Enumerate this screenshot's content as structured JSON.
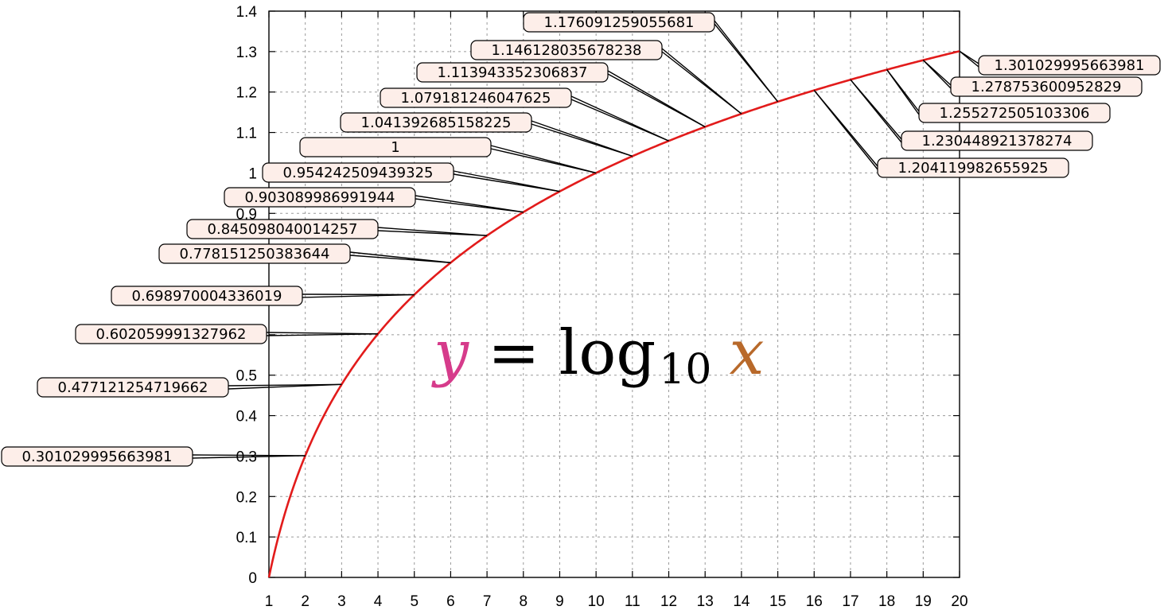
{
  "chart_data": {
    "type": "line",
    "xlim": [
      1,
      20
    ],
    "ylim": [
      0,
      1.4
    ],
    "grid": true,
    "x_ticks": [
      "1",
      "2",
      "3",
      "4",
      "5",
      "6",
      "7",
      "8",
      "9",
      "10",
      "11",
      "12",
      "13",
      "14",
      "15",
      "16",
      "17",
      "18",
      "19",
      "20"
    ],
    "y_ticks": [
      "0",
      "0.1",
      "0.2",
      "0.3",
      "0.4",
      "0.5",
      "0.6",
      "0.7",
      "0.8",
      "0.9",
      "1",
      "1.1",
      "1.2",
      "1.3",
      "1.4"
    ],
    "equation": {
      "lhs": "y",
      "eq": "=",
      "func": "log",
      "sub": "10",
      "arg": "x"
    },
    "colors": {
      "curve": "#e21b1b",
      "lhs": "#d63b8b",
      "arg": "#b8692a",
      "label_fill": "#fdeee9"
    },
    "series": [
      {
        "x": [
          2,
          3,
          4,
          5,
          6,
          7,
          8,
          9,
          10,
          11,
          12,
          13,
          14,
          15,
          16,
          17,
          18,
          19,
          20
        ],
        "y": [
          0.301029995663981,
          0.477121254719662,
          0.602059991327962,
          0.698970004336019,
          0.778151250383644,
          0.845098040014257,
          0.903089986991944,
          0.954242509439325,
          1,
          1.041392685158225,
          1.079181246047625,
          1.113943352306837,
          1.146128035678238,
          1.176091259055681,
          1.204119982655925,
          1.230448921378274,
          1.255272505103306,
          1.278753600952829,
          1.301029995663981
        ]
      }
    ],
    "labels": [
      "0.301029995663981",
      "0.477121254719662",
      "0.602059991327962",
      "0.698970004336019",
      "0.778151250383644",
      "0.845098040014257",
      "0.903089986991944",
      "0.954242509439325",
      "1",
      "1.041392685158225",
      "1.079181246047625",
      "1.113943352306837",
      "1.146128035678238",
      "1.176091259055681",
      "1.204119982655925",
      "1.230448921378274",
      "1.255272505103306",
      "1.278753600952829",
      "1.301029995663981"
    ]
  }
}
